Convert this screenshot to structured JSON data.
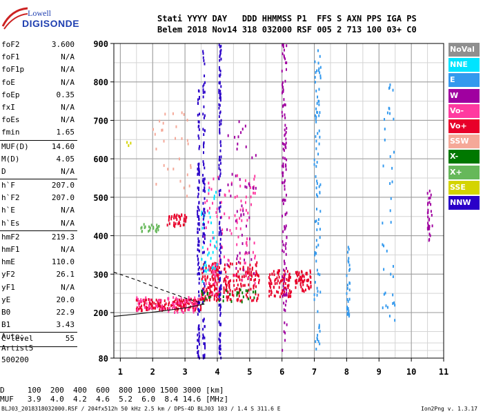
{
  "header": {
    "logo_line1": "Lowell",
    "logo_line2": "DIGISONDE",
    "labels": "Stati YYYY DAY   DDD HHMMSS P1  FFS S AXN PPS IGA PS",
    "values": "Belem 2018 Nov14 318 032000 RSF 005 2 713 100 03+ C0"
  },
  "params_group1": [
    {
      "label": "foF2",
      "value": "3.600"
    },
    {
      "label": "foF1",
      "value": "N/A"
    },
    {
      "label": "foF1p",
      "value": "N/A"
    },
    {
      "label": "foE",
      "value": "N/A"
    },
    {
      "label": "foEp",
      "value": "0.35"
    },
    {
      "label": "fxI",
      "value": "N/A"
    },
    {
      "label": "foEs",
      "value": "N/A"
    },
    {
      "label": "fmin",
      "value": "1.65"
    }
  ],
  "params_group2": [
    {
      "label": "MUF(D)",
      "value": "14.60"
    },
    {
      "label": "M(D)",
      "value": "4.05"
    },
    {
      "label": "D",
      "value": "N/A"
    }
  ],
  "params_group3": [
    {
      "label": "h`F",
      "value": "207.0"
    },
    {
      "label": "h`F2",
      "value": "207.0"
    },
    {
      "label": "h`E",
      "value": "N/A"
    },
    {
      "label": "h`Es",
      "value": "N/A"
    }
  ],
  "params_group4": [
    {
      "label": "hmF2",
      "value": "219.3"
    },
    {
      "label": "hmF1",
      "value": "N/A"
    },
    {
      "label": "hmE",
      "value": "110.0"
    },
    {
      "label": "yF2",
      "value": "26.1"
    },
    {
      "label": "yF1",
      "value": "N/A"
    },
    {
      "label": "yE",
      "value": "20.0"
    },
    {
      "label": "B0",
      "value": "22.9"
    },
    {
      "label": "B1",
      "value": "3.43"
    }
  ],
  "params_group5": [
    {
      "label": "C-level",
      "value": "55"
    }
  ],
  "auto": {
    "line1": "Auto:",
    "line2": "Artist5",
    "line3": "500200"
  },
  "legend": [
    {
      "label": "NoVal",
      "color": "#8f8f8f"
    },
    {
      "label": "NNE",
      "color": "#00e4ff"
    },
    {
      "label": "E",
      "color": "#3399ee"
    },
    {
      "label": "W",
      "color": "#a000a0"
    },
    {
      "label": "Vo-",
      "color": "#ff3aa0"
    },
    {
      "label": "Vo+",
      "color": "#e8002a"
    },
    {
      "label": "SSW",
      "color": "#f5a898"
    },
    {
      "label": "X-",
      "color": "#007800"
    },
    {
      "label": "X+",
      "color": "#66b85a"
    },
    {
      "label": "SSE",
      "color": "#d4d400"
    },
    {
      "label": "NNW",
      "color": "#2a00c8"
    }
  ],
  "bottom": {
    "d_line": "D     100  200  400  600  800 1000 1500 3000 [km]",
    "muf_line": "MUF   3.9  4.0  4.2  4.6  5.2  6.0  8.4 14.6 [MHz]",
    "footer": "BLJ03_2018318032000.RSF / 204fx512h 50 kHz 2.5 km / DPS-4D BLJ03 103 / 1.4 S 311.6 E",
    "version": "Ion2Png v. 1.3.17"
  },
  "chart_data": {
    "type": "scatter",
    "xlabel": "",
    "ylabel": "",
    "xlim": [
      0.8,
      11
    ],
    "ylim": [
      80,
      900
    ],
    "x_ticks": [
      1,
      2,
      3,
      4,
      5,
      6,
      7,
      8,
      9,
      10,
      11
    ],
    "y_ticks": [
      80,
      200,
      300,
      400,
      500,
      600,
      700,
      800,
      900
    ],
    "grid": true,
    "trace_curves": [
      {
        "name": "",
        "style": "dashed",
        "x": [
          0.8,
          1.5,
          2.2,
          3.0,
          3.6
        ],
        "y": [
          305,
          285,
          262,
          238,
          222
        ]
      },
      {
        "name": "",
        "style": "solid",
        "x": [
          0.8,
          1.5,
          2.2,
          3.0,
          3.6
        ],
        "y": [
          190,
          196,
          203,
          212,
          222
        ]
      }
    ],
    "echo_clusters": [
      {
        "series": "Vo+",
        "x_range": [
          1.5,
          3.5
        ],
        "y_range": [
          205,
          235
        ],
        "count": 180
      },
      {
        "series": "Vo+",
        "x_range": [
          3.5,
          4.1
        ],
        "y_range": [
          230,
          330
        ],
        "count": 120
      },
      {
        "series": "Vo+",
        "x_range": [
          4.2,
          5.3
        ],
        "y_range": [
          230,
          330
        ],
        "count": 140
      },
      {
        "series": "Vo+",
        "x_range": [
          5.6,
          6.3
        ],
        "y_range": [
          240,
          310
        ],
        "count": 90
      },
      {
        "series": "Vo+",
        "x_range": [
          6.4,
          6.9
        ],
        "y_range": [
          255,
          310
        ],
        "count": 60
      },
      {
        "series": "Vo-",
        "x_range": [
          1.5,
          3.5
        ],
        "y_range": [
          200,
          240
        ],
        "count": 80
      },
      {
        "series": "Vo-",
        "x_range": [
          3.6,
          5.2
        ],
        "y_range": [
          240,
          560
        ],
        "count": 120
      },
      {
        "series": "Vo+",
        "x_range": [
          2.4,
          3.1
        ],
        "y_range": [
          420,
          455
        ],
        "count": 40
      },
      {
        "series": "X+",
        "x_range": [
          1.6,
          2.2
        ],
        "y_range": [
          410,
          430
        ],
        "count": 25
      },
      {
        "series": "X-",
        "x_range": [
          3.5,
          5.2
        ],
        "y_range": [
          225,
          260
        ],
        "count": 30
      },
      {
        "series": "E",
        "x_range": [
          7.0,
          7.2
        ],
        "y_range": [
          100,
          900
        ],
        "count": 90
      },
      {
        "series": "E",
        "x_range": [
          8.0,
          8.1
        ],
        "y_range": [
          180,
          380
        ],
        "count": 30
      },
      {
        "series": "E",
        "x_range": [
          9.1,
          9.5
        ],
        "y_range": [
          160,
          820
        ],
        "count": 40
      },
      {
        "series": "NNE",
        "x_range": [
          3.5,
          4.0
        ],
        "y_range": [
          280,
          520
        ],
        "count": 40
      },
      {
        "series": "W",
        "x_range": [
          6.0,
          6.15
        ],
        "y_range": [
          80,
          900
        ],
        "count": 120
      },
      {
        "series": "W",
        "x_range": [
          4.3,
          5.2
        ],
        "y_range": [
          300,
          700
        ],
        "count": 50
      },
      {
        "series": "W",
        "x_range": [
          10.5,
          10.65
        ],
        "y_range": [
          380,
          520
        ],
        "count": 30
      },
      {
        "series": "NNW",
        "x_range": [
          3.38,
          3.45
        ],
        "y_range": [
          80,
          790
        ],
        "count": 110
      },
      {
        "series": "NNW",
        "x_range": [
          4.05,
          4.12
        ],
        "y_range": [
          80,
          900
        ],
        "count": 140
      },
      {
        "series": "NNW",
        "x_range": [
          3.55,
          3.62
        ],
        "y_range": [
          80,
          900
        ],
        "count": 90
      },
      {
        "series": "SSW",
        "x_range": [
          2.0,
          3.2
        ],
        "y_range": [
          500,
          720
        ],
        "count": 30
      },
      {
        "series": "SSE",
        "x_range": [
          1.2,
          1.4
        ],
        "y_range": [
          630,
          660
        ],
        "count": 3
      }
    ]
  }
}
